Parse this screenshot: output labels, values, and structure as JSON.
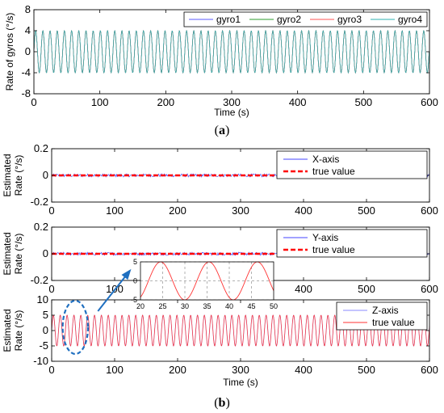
{
  "figure": {
    "caption_a": {
      "open": "(",
      "letter": "a",
      "close": ")"
    },
    "caption_b": {
      "open": "(",
      "letter": "b",
      "close": ")"
    }
  },
  "chart_data": [
    {
      "id": "gyros",
      "type": "line",
      "ylabel": "Rate of gyros (°/s)",
      "xlabel": "Time (s)",
      "xlim": [
        0,
        600
      ],
      "ylim": [
        -8,
        8
      ],
      "xticks": [
        0,
        100,
        200,
        300,
        400,
        500,
        600
      ],
      "yticks": [
        -8,
        -4,
        0,
        4,
        8
      ],
      "signal": {
        "kind": "sine",
        "amplitude": 4,
        "period_s": 10.9
      },
      "series": [
        {
          "name": "gyro1",
          "color": "#5b5bff"
        },
        {
          "name": "gyro2",
          "color": "#2e9e2e"
        },
        {
          "name": "gyro3",
          "color": "#ff5555"
        },
        {
          "name": "gyro4",
          "color": "#2fb3b3"
        }
      ],
      "legend": "top-right"
    },
    {
      "id": "x-axis",
      "type": "line",
      "ylabel_lines": [
        "Estimated",
        "Rate (°/s)"
      ],
      "xlim": [
        0,
        600
      ],
      "ylim": [
        -0.2,
        0.2
      ],
      "xticks": [
        0,
        100,
        200,
        300,
        400,
        500,
        600
      ],
      "yticks": [
        -0.2,
        0,
        0.2
      ],
      "ytick_labels": [
        "-0.2",
        "0",
        "0.2"
      ],
      "series": [
        {
          "name": "X-axis",
          "color": "#4444ff",
          "kind": "noise",
          "amplitude": 0.012
        },
        {
          "name": "true value",
          "color": "#ff0000",
          "kind": "constant",
          "value": 0,
          "dashed": true
        }
      ],
      "legend": "top-right"
    },
    {
      "id": "y-axis",
      "type": "line",
      "ylabel_lines": [
        "Estimated",
        "Rate (°/s)"
      ],
      "xlim": [
        0,
        600
      ],
      "ylim": [
        -0.2,
        0.2
      ],
      "xticks": [
        0,
        100,
        200,
        300,
        400,
        500,
        600
      ],
      "yticks": [
        -0.2,
        0,
        0.2
      ],
      "ytick_labels": [
        "-0.2",
        "0",
        "0.2"
      ],
      "series": [
        {
          "name": "Y-axis",
          "color": "#4444ff",
          "kind": "noise",
          "amplitude": 0.012
        },
        {
          "name": "true value",
          "color": "#ff0000",
          "kind": "constant",
          "value": 0,
          "dashed": true
        }
      ],
      "legend": "top-right"
    },
    {
      "id": "z-axis",
      "type": "line",
      "ylabel_lines": [
        "Estimated",
        "Rate (°/s)"
      ],
      "xlabel": "Time (s)",
      "xlim": [
        0,
        600
      ],
      "ylim": [
        -10,
        10
      ],
      "xticks": [
        0,
        100,
        200,
        300,
        400,
        500,
        600
      ],
      "yticks": [
        -10,
        -5,
        0,
        5,
        10
      ],
      "signal": {
        "kind": "sine",
        "amplitude": 5,
        "period_s": 10.9
      },
      "series": [
        {
          "name": "Z-axis",
          "color": "#8a8aff"
        },
        {
          "name": "true value",
          "color": "#ff3333"
        }
      ],
      "legend": "top-right",
      "inset": {
        "xlim": [
          20,
          50
        ],
        "ylim": [
          -5,
          5
        ],
        "xticks": [
          20,
          25,
          30,
          35,
          40,
          45,
          50
        ],
        "yticks": [
          -5,
          0,
          5
        ],
        "grid": true,
        "highlight_range_s": [
          20,
          50
        ]
      }
    }
  ]
}
